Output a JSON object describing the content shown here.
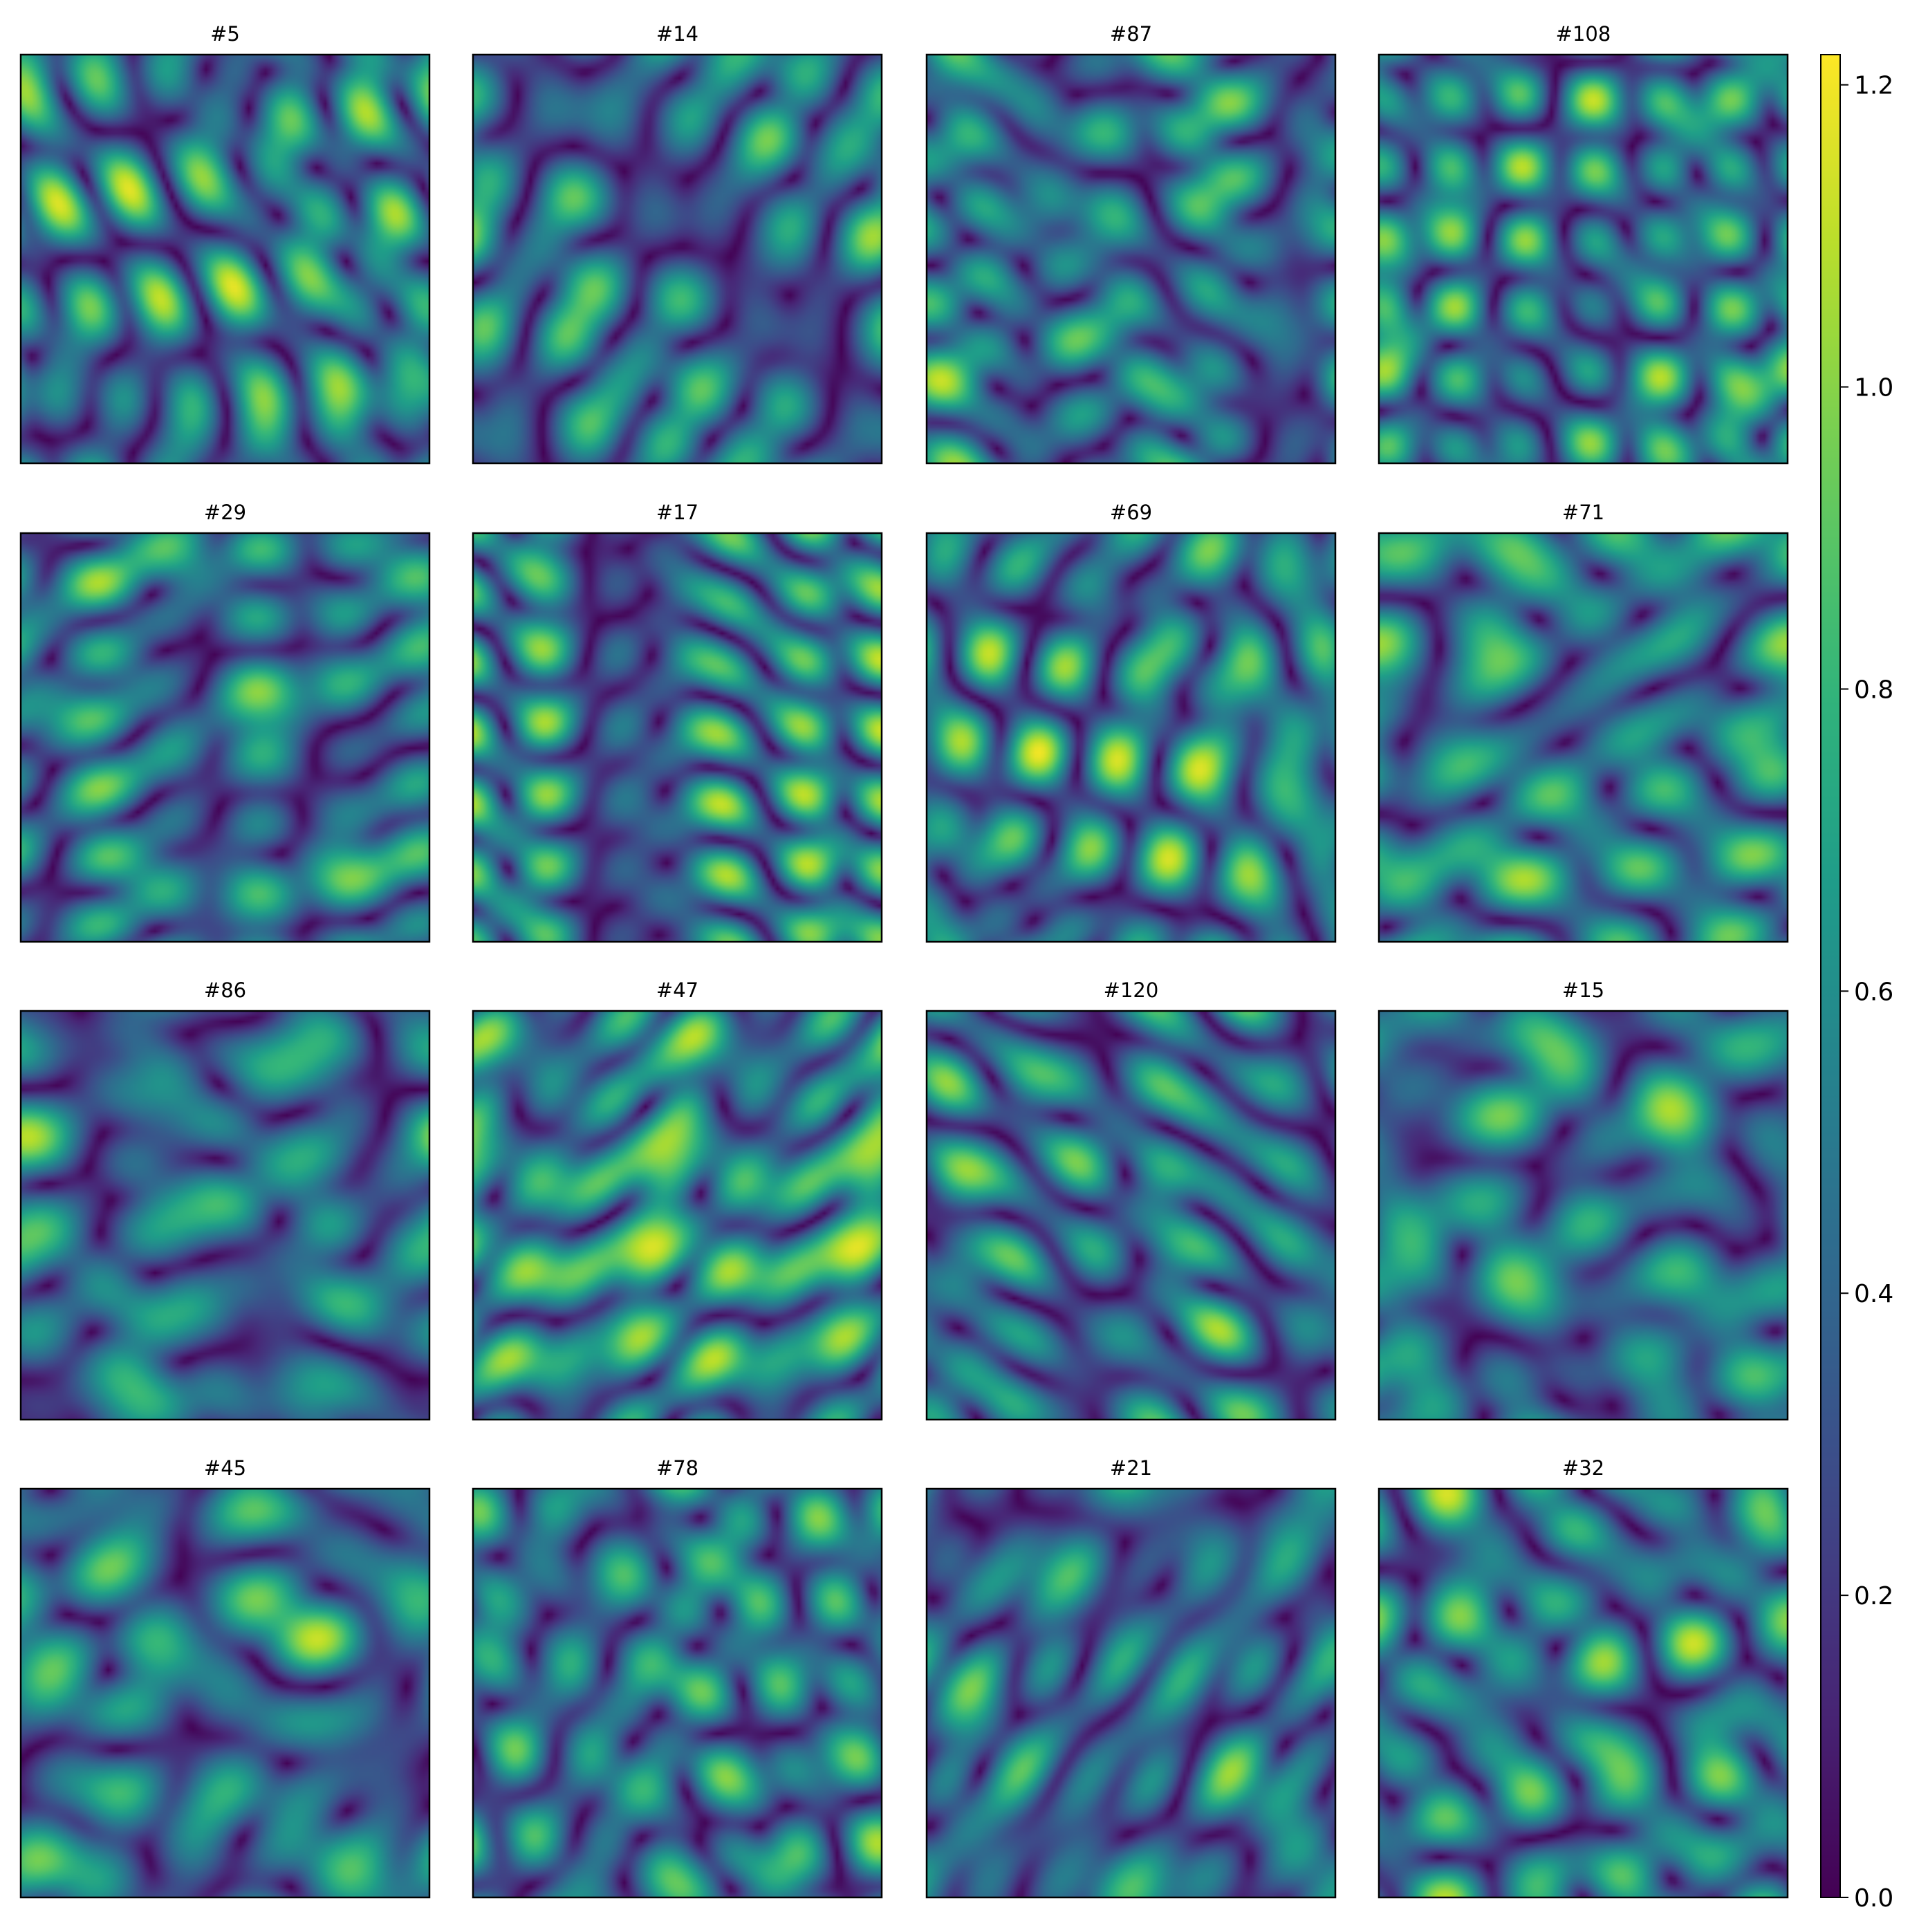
{
  "chart_data": {
    "type": "heatmap",
    "colormap": "viridis",
    "grid": false,
    "layout": {
      "rows": 4,
      "cols": 4
    },
    "panels": [
      {
        "title": "#5",
        "seed": 5
      },
      {
        "title": "#14",
        "seed": 14
      },
      {
        "title": "#87",
        "seed": 87
      },
      {
        "title": "#108",
        "seed": 108
      },
      {
        "title": "#29",
        "seed": 29
      },
      {
        "title": "#17",
        "seed": 17
      },
      {
        "title": "#69",
        "seed": 69
      },
      {
        "title": "#71",
        "seed": 71
      },
      {
        "title": "#86",
        "seed": 86
      },
      {
        "title": "#47",
        "seed": 47
      },
      {
        "title": "#120",
        "seed": 120
      },
      {
        "title": "#15",
        "seed": 15
      },
      {
        "title": "#45",
        "seed": 45
      },
      {
        "title": "#78",
        "seed": 78
      },
      {
        "title": "#21",
        "seed": 21
      },
      {
        "title": "#32",
        "seed": 32
      }
    ],
    "colorbar": {
      "range": [
        0,
        1.22
      ],
      "ticks": [
        0,
        0.2,
        0.4,
        0.6,
        0.8,
        1.0,
        1.2
      ],
      "tick_labels": [
        "0.0",
        "0.2",
        "0.4",
        "0.6",
        "0.8",
        "1.0",
        "1.2"
      ]
    }
  }
}
